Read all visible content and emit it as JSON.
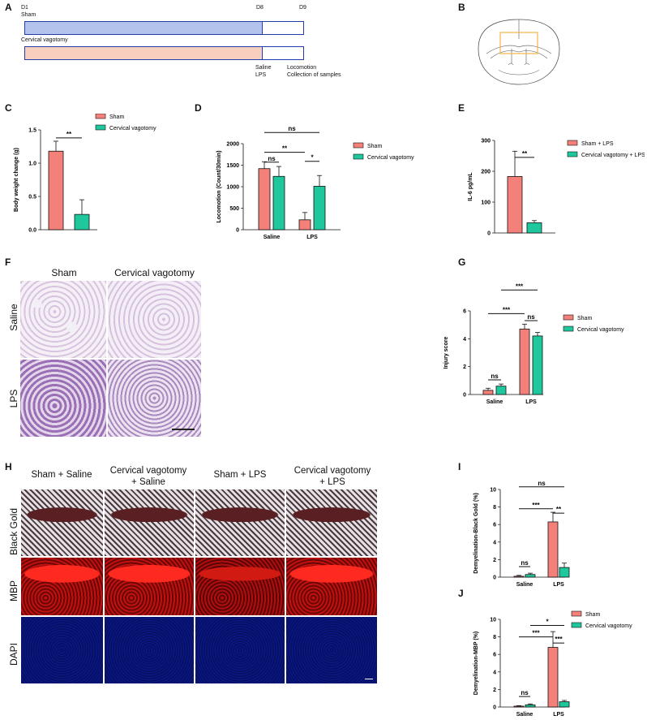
{
  "colors": {
    "sham": "#f4807a",
    "vagotomy": "#1ec79c",
    "dark": "#111111",
    "timeline_sham": "#b3c3ec",
    "timeline_vag": "#f8cfbf",
    "timeline_border": "#1f3ea8"
  },
  "panel_labels": [
    "A",
    "B",
    "C",
    "D",
    "E",
    "F",
    "G",
    "H",
    "I",
    "J"
  ],
  "panel_a": {
    "d1": "D1",
    "d8": "D8",
    "d9": "D9",
    "sham": "Sham",
    "vagotomy": "Cervical vagotomy",
    "treat1": "Saline",
    "treat2": "LPS",
    "loco": "Locomotion",
    "collect": "Collection of samples"
  },
  "panel_f": {
    "col1": "Sham",
    "col2": "Cervical vagotomy",
    "row1": "Saline",
    "row2": "LPS"
  },
  "panel_h": {
    "col1": "Sham + Saline",
    "col2a": "Cervical vagotomy",
    "col2b": "+ Saline",
    "col3": "Sham + LPS",
    "col4a": "Cervical vagotomy",
    "col4b": "+ LPS",
    "row1": "Black Gold",
    "row2": "MBP",
    "row3": "DAPI"
  },
  "chart_data": [
    {
      "id": "C",
      "type": "bar",
      "categories": [
        ""
      ],
      "series": [
        {
          "name": "Sham",
          "values": [
            1.18
          ],
          "err": [
            0.15
          ]
        },
        {
          "name": "Cervical vagotomy",
          "values": [
            0.23
          ],
          "err": [
            0.22
          ]
        }
      ],
      "ylabel": "Body weight change (g)",
      "ylim": [
        0,
        1.5
      ],
      "yticks": [
        "0.0",
        "0.5",
        "1.0",
        "1.5"
      ],
      "sig": [
        "**"
      ]
    },
    {
      "id": "D",
      "type": "bar",
      "categories": [
        "Saline",
        "LPS"
      ],
      "series": [
        {
          "name": "Sham",
          "values": [
            1420,
            230
          ],
          "err": [
            160,
            170
          ]
        },
        {
          "name": "Cervical vagotomy",
          "values": [
            1240,
            1010
          ],
          "err": [
            230,
            250
          ]
        }
      ],
      "ylabel": "Locomotion (Count/30min)",
      "ylim": [
        0,
        2000
      ],
      "yticks": [
        "0",
        "500",
        "1000",
        "1500",
        "2000"
      ],
      "sig": [
        "ns",
        "**",
        "*",
        "ns"
      ]
    },
    {
      "id": "E",
      "type": "bar",
      "categories": [
        ""
      ],
      "series": [
        {
          "name": "Sham + LPS",
          "values": [
            183
          ],
          "err": [
            82
          ]
        },
        {
          "name": "Cervical vagotomy + LPS",
          "values": [
            33
          ],
          "err": [
            7
          ]
        }
      ],
      "ylabel": "IL-6 pg/mL",
      "ylim": [
        0,
        300
      ],
      "yticks": [
        "0",
        "100",
        "200",
        "300"
      ],
      "sig": [
        "**"
      ]
    },
    {
      "id": "G",
      "type": "bar",
      "categories": [
        "Saline",
        "LPS"
      ],
      "series": [
        {
          "name": "Sham",
          "values": [
            0.3,
            4.7
          ],
          "err": [
            0.15,
            0.35
          ]
        },
        {
          "name": "Cervical vagotomy",
          "values": [
            0.6,
            4.2
          ],
          "err": [
            0.15,
            0.25
          ]
        }
      ],
      "ylabel": "Injury score",
      "ylim": [
        0,
        6
      ],
      "yticks": [
        "0",
        "2",
        "4",
        "6"
      ],
      "sig": [
        "ns",
        "***",
        "***",
        "ns"
      ]
    },
    {
      "id": "I",
      "type": "bar",
      "categories": [
        "Saline",
        "LPS"
      ],
      "series": [
        {
          "name": "Sham",
          "values": [
            0.1,
            6.3
          ],
          "err": [
            0.1,
            1.1
          ]
        },
        {
          "name": "Cervical vagotomy",
          "values": [
            0.3,
            1.1
          ],
          "err": [
            0.15,
            0.5
          ]
        }
      ],
      "ylabel": "Demyelination-Black Gold (%)",
      "ylim": [
        0,
        10
      ],
      "yticks": [
        "0",
        "2",
        "4",
        "6",
        "8",
        "10"
      ],
      "sig": [
        "ns",
        "***",
        "**",
        "ns"
      ]
    },
    {
      "id": "J",
      "type": "bar",
      "categories": [
        "Saline",
        "LPS"
      ],
      "series": [
        {
          "name": "Sham",
          "values": [
            0.1,
            6.8
          ],
          "err": [
            0.05,
            1.8
          ]
        },
        {
          "name": "Cervical vagotomy",
          "values": [
            0.25,
            0.6
          ],
          "err": [
            0.1,
            0.15
          ]
        }
      ],
      "ylabel": "Demyelination-MBP (%)",
      "ylim": [
        0,
        10
      ],
      "yticks": [
        "0",
        "2",
        "4",
        "6",
        "8",
        "10"
      ],
      "sig": [
        "ns",
        "***",
        "***",
        "*"
      ]
    }
  ]
}
